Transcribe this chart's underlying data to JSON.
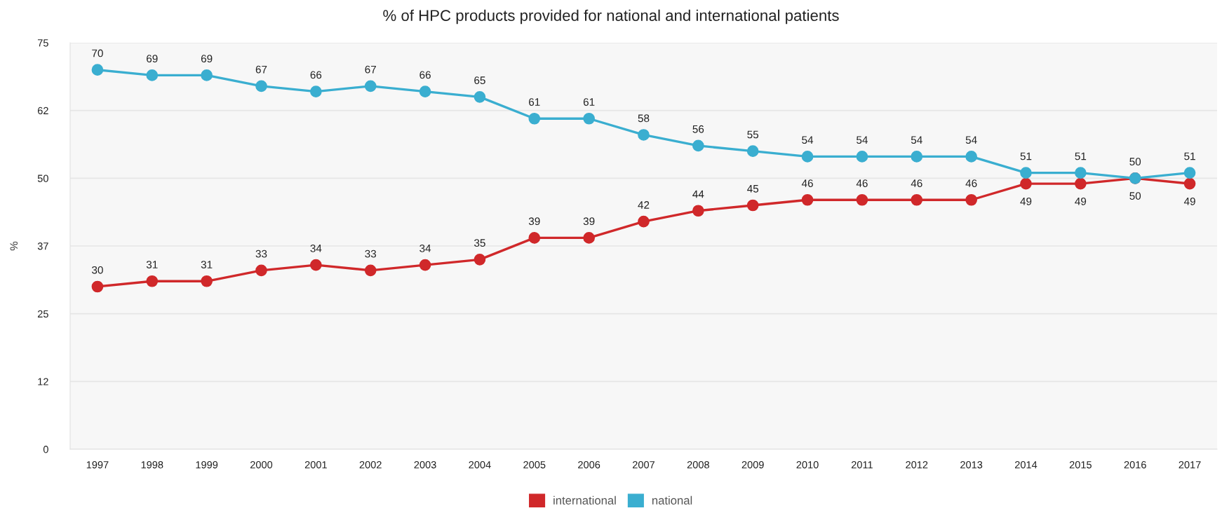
{
  "chart_data": {
    "type": "line",
    "title": "% of HPC products provided for national and international patients",
    "ylabel": "%",
    "categories": [
      "1997",
      "1998",
      "1999",
      "2000",
      "2001",
      "2002",
      "2003",
      "2004",
      "2005",
      "2006",
      "2007",
      "2008",
      "2009",
      "2010",
      "2011",
      "2012",
      "2013",
      "2014",
      "2015",
      "2016",
      "2017"
    ],
    "series": [
      {
        "name": "international",
        "color": "#d0282a",
        "values": [
          30,
          31,
          31,
          33,
          34,
          33,
          34,
          35,
          39,
          39,
          42,
          44,
          45,
          46,
          46,
          46,
          46,
          49,
          49,
          50,
          49
        ]
      },
      {
        "name": "national",
        "color": "#3aaed0",
        "values": [
          70,
          69,
          69,
          67,
          66,
          67,
          66,
          65,
          61,
          61,
          58,
          56,
          55,
          54,
          54,
          54,
          54,
          51,
          51,
          50,
          51
        ]
      }
    ],
    "ylim": [
      0,
      75
    ],
    "yticks": [
      0,
      {
        "value": 12.5,
        "label": "12"
      },
      25,
      {
        "value": 37.5,
        "label": "37"
      },
      50,
      {
        "value": 62.5,
        "label": "62"
      },
      75
    ],
    "grid": "y",
    "legend": "bottom",
    "marker": "circle",
    "line_style": "solid",
    "data_labels": true
  }
}
